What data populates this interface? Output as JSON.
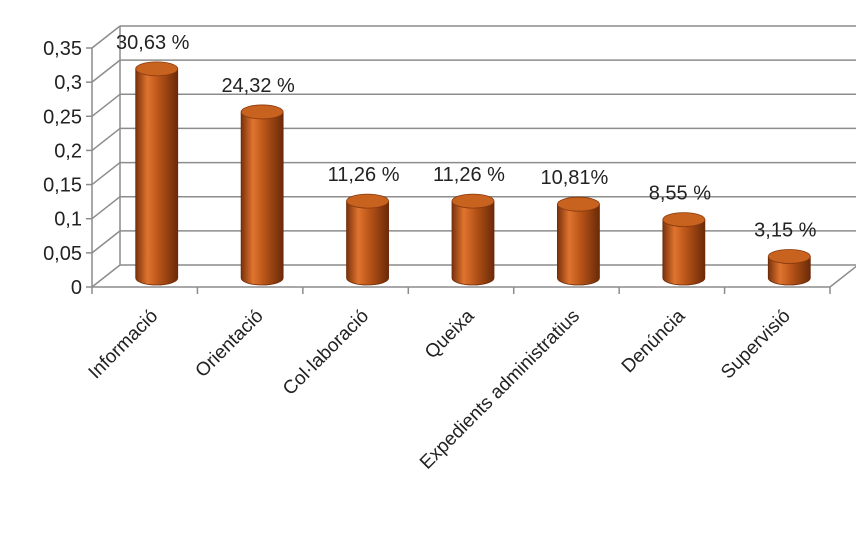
{
  "chart_data": {
    "type": "bar",
    "style": "3d-cylinder",
    "categories": [
      "Informació",
      "Orientació",
      "Col·laboració",
      "Queixa",
      "Expedients administratius",
      "Denúncia",
      "Supervisió"
    ],
    "values": [
      0.3063,
      0.2432,
      0.1126,
      0.1126,
      0.1081,
      0.0855,
      0.0315
    ],
    "data_labels": [
      "30,63 %",
      "24,32 %",
      "11,26 %",
      "11,26 %",
      "10,81%",
      "8,55 %",
      "3,15 %"
    ],
    "y_ticks": [
      "0",
      "0,05",
      "0,1",
      "0,15",
      "0,2",
      "0,25",
      "0,3",
      "0,35"
    ],
    "ylim": [
      0,
      0.35
    ],
    "title": "",
    "xlabel": "",
    "ylabel": "",
    "grid": true,
    "legend": "none",
    "colors": {
      "bar_light": "#e0742f",
      "bar_mid": "#b85418",
      "bar_dark": "#7a320b",
      "bar_top": "#c8621f",
      "grid": "#8c8c8c",
      "wall": "#ffffff"
    }
  }
}
